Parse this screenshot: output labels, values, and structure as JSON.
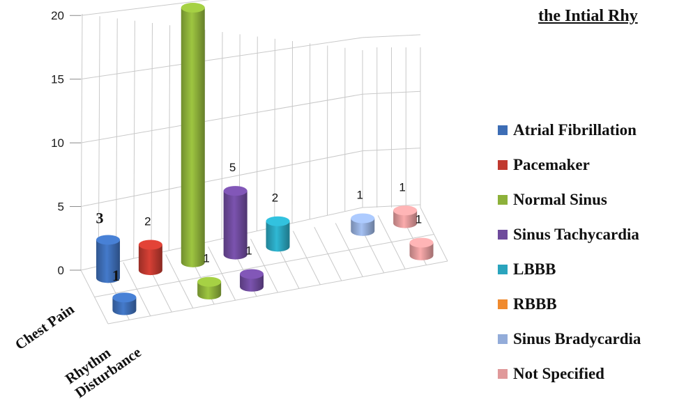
{
  "chart_data": {
    "type": "bar",
    "title": "the Intial Rhy",
    "categories": [
      "Chest Pain",
      "Rhythm Disturbance"
    ],
    "ylim": [
      0,
      20
    ],
    "yticks": [
      "0",
      "5",
      "10",
      "15",
      "20"
    ],
    "grid": true,
    "legend_position": "right",
    "series": [
      {
        "name": "Atrial Fibrillation",
        "color": "#3d6db5",
        "values": [
          3,
          1
        ],
        "labels": [
          "3",
          "1"
        ]
      },
      {
        "name": "Pacemaker",
        "color": "#c0392f",
        "values": [
          2,
          null
        ],
        "labels": [
          "2",
          ""
        ]
      },
      {
        "name": "Normal Sinus",
        "color": "#8db13a",
        "values": [
          20,
          1
        ],
        "labels": [
          "20",
          "1"
        ]
      },
      {
        "name": "Sinus Tachycardia",
        "color": "#6e4a9c",
        "values": [
          5,
          1
        ],
        "labels": [
          "5",
          "1"
        ]
      },
      {
        "name": "LBBB",
        "color": "#2aa4bd",
        "values": [
          2,
          null
        ],
        "labels": [
          "2",
          ""
        ]
      },
      {
        "name": "RBBB",
        "color": "#f08a2e",
        "values": [
          null,
          null
        ],
        "labels": [
          "",
          ""
        ]
      },
      {
        "name": "Sinus Bradycardia",
        "color": "#93acd9",
        "values": [
          1,
          null
        ],
        "labels": [
          "1",
          ""
        ]
      },
      {
        "name": "Not Specified",
        "color": "#e0999a",
        "values": [
          1,
          1
        ],
        "labels": [
          "1",
          "1"
        ]
      }
    ]
  }
}
